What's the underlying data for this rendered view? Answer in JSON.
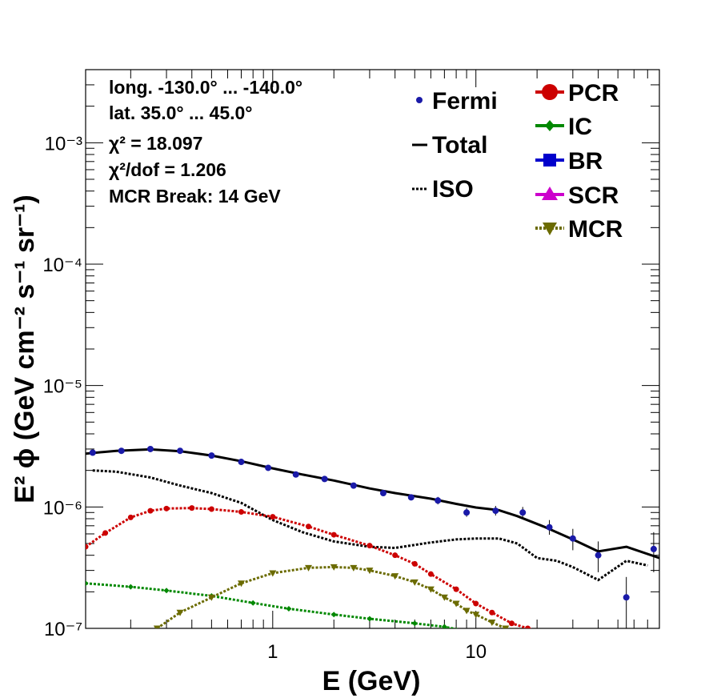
{
  "chart_data": {
    "type": "line",
    "xscale": "log",
    "yscale": "log",
    "xlim": [
      0.12,
      80
    ],
    "ylim": [
      1e-07,
      0.004
    ],
    "xlabel": "E (GeV)",
    "ylabel": "E² ϕ (GeV cm⁻² s⁻¹ sr⁻¹)",
    "x_ticks": [
      "1",
      "10"
    ],
    "y_ticks": [
      "10⁻⁷",
      "10⁻⁶",
      "10⁻⁵",
      "10⁻⁴",
      "10⁻³"
    ],
    "annotations": [
      "long. -130.0° ... -140.0°",
      "lat. 35.0° ... 45.0°",
      "χ² = 18.097",
      "χ²/dof = 1.206",
      "MCR Break: 14 GeV"
    ],
    "legend_position": "top-right",
    "series": [
      {
        "name": "Fermi",
        "kind": "points",
        "color": "#1a1aa8",
        "x": [
          0.13,
          0.18,
          0.25,
          0.35,
          0.5,
          0.7,
          0.95,
          1.3,
          1.8,
          2.5,
          3.5,
          4.8,
          6.5,
          9,
          12.5,
          17,
          23,
          30,
          40,
          55,
          75
        ],
        "y": [
          2.8e-06,
          2.9e-06,
          3e-06,
          2.9e-06,
          2.65e-06,
          2.35e-06,
          2.1e-06,
          1.85e-06,
          1.7e-06,
          1.5e-06,
          1.3e-06,
          1.2e-06,
          1.13e-06,
          9e-07,
          9.3e-07,
          9e-07,
          6.8e-07,
          5.5e-07,
          4e-07,
          1.8e-07,
          4.5e-07
        ],
        "err_low": [
          2.7e-06,
          2.82e-06,
          2.92e-06,
          2.83e-06,
          2.58e-06,
          2.28e-06,
          2.04e-06,
          1.8e-06,
          1.65e-06,
          1.45e-06,
          1.26e-06,
          1.15e-06,
          1.05e-06,
          8.3e-07,
          8.5e-07,
          8e-07,
          5.9e-07,
          4.4e-07,
          2.9e-07,
          1e-07,
          2.9e-07
        ],
        "err_high": [
          2.9e-06,
          2.98e-06,
          3.08e-06,
          2.97e-06,
          2.72e-06,
          2.42e-06,
          2.16e-06,
          1.9e-06,
          1.75e-06,
          1.55e-06,
          1.34e-06,
          1.25e-06,
          1.21e-06,
          9.8e-07,
          1.02e-06,
          1e-06,
          7.8e-07,
          6.6e-07,
          5.2e-07,
          2.65e-07,
          6.2e-07
        ]
      },
      {
        "name": "Total",
        "kind": "line",
        "color": "#000000",
        "x": [
          0.12,
          0.17,
          0.25,
          0.35,
          0.5,
          0.7,
          1.0,
          1.4,
          2.0,
          3.0,
          4.0,
          6.0,
          8.0,
          10.0,
          13.0,
          16.0,
          22.0,
          30.0,
          40.0,
          55.0,
          80.0
        ],
        "y": [
          2.75e-06,
          2.9e-06,
          2.98e-06,
          2.88e-06,
          2.65e-06,
          2.38e-06,
          2.08e-06,
          1.85e-06,
          1.65e-06,
          1.42e-06,
          1.3e-06,
          1.17e-06,
          1.06e-06,
          9.9e-07,
          9.4e-07,
          8.4e-07,
          6.8e-07,
          5.4e-07,
          4.3e-07,
          4.7e-07,
          3.8e-07
        ]
      },
      {
        "name": "ISO",
        "kind": "dotted-line",
        "color": "#000000",
        "x": [
          0.13,
          0.17,
          0.25,
          0.35,
          0.5,
          0.7,
          1.0,
          1.4,
          2.0,
          3.0,
          4.0,
          6.0,
          8.0,
          10.0,
          13.0,
          16.0,
          20.0,
          25.0,
          30.0,
          40.0,
          55.0,
          70.0
        ],
        "y": [
          2e-06,
          1.95e-06,
          1.75e-06,
          1.5e-06,
          1.3e-06,
          1.08e-06,
          7.8e-07,
          6.2e-07,
          5.2e-07,
          4.7e-07,
          4.6e-07,
          5.1e-07,
          5.4e-07,
          5.5e-07,
          5.5e-07,
          5e-07,
          3.8e-07,
          3.6e-07,
          3.2e-07,
          2.5e-07,
          3.6e-07,
          3.3e-07
        ]
      },
      {
        "name": "PCR",
        "kind": "line-markers",
        "color": "#cc0000",
        "x": [
          0.12,
          0.15,
          0.2,
          0.25,
          0.3,
          0.4,
          0.5,
          0.7,
          1.0,
          1.5,
          2.0,
          3.0,
          4.0,
          5.0,
          6.0,
          8.0,
          10.0,
          12.0,
          15.0,
          18.0,
          20.0
        ],
        "y": [
          4.7e-07,
          6.1e-07,
          8.2e-07,
          9.3e-07,
          9.7e-07,
          9.8e-07,
          9.6e-07,
          9.1e-07,
          8.3e-07,
          6.9e-07,
          5.9e-07,
          4.8e-07,
          4e-07,
          3.4e-07,
          2.8e-07,
          2.1e-07,
          1.6e-07,
          1.35e-07,
          1.1e-07,
          1e-07,
          9.5e-08
        ]
      },
      {
        "name": "IC",
        "kind": "line-markers",
        "color": "#008800",
        "x": [
          0.12,
          0.2,
          0.3,
          0.5,
          0.8,
          1.2,
          2.0,
          3.0,
          5.0,
          7.0,
          9.0
        ],
        "y": [
          2.35e-07,
          2.2e-07,
          2.05e-07,
          1.85e-07,
          1.62e-07,
          1.45e-07,
          1.3e-07,
          1.2e-07,
          1.1e-07,
          1.03e-07,
          9.5e-08
        ]
      },
      {
        "name": "BR",
        "kind": "line-markers",
        "color": "#0000cc",
        "x": [],
        "y": []
      },
      {
        "name": "SCR",
        "kind": "line-markers",
        "color": "#cc00cc",
        "x": [],
        "y": []
      },
      {
        "name": "MCR",
        "kind": "dotted-line-markers",
        "color": "#6b6b00",
        "x": [
          0.27,
          0.35,
          0.5,
          0.7,
          1.0,
          1.5,
          2.0,
          2.5,
          3.0,
          4.0,
          5.0,
          6.0,
          7.0,
          8.0,
          9.0,
          10.0,
          12.0,
          14.0,
          15.0
        ],
        "y": [
          1e-07,
          1.35e-07,
          1.8e-07,
          2.35e-07,
          2.85e-07,
          3.15e-07,
          3.2e-07,
          3.15e-07,
          3e-07,
          2.7e-07,
          2.4e-07,
          2.1e-07,
          1.8e-07,
          1.6e-07,
          1.4e-07,
          1.3e-07,
          1.12e-07,
          1e-07,
          9.5e-08
        ]
      }
    ]
  }
}
